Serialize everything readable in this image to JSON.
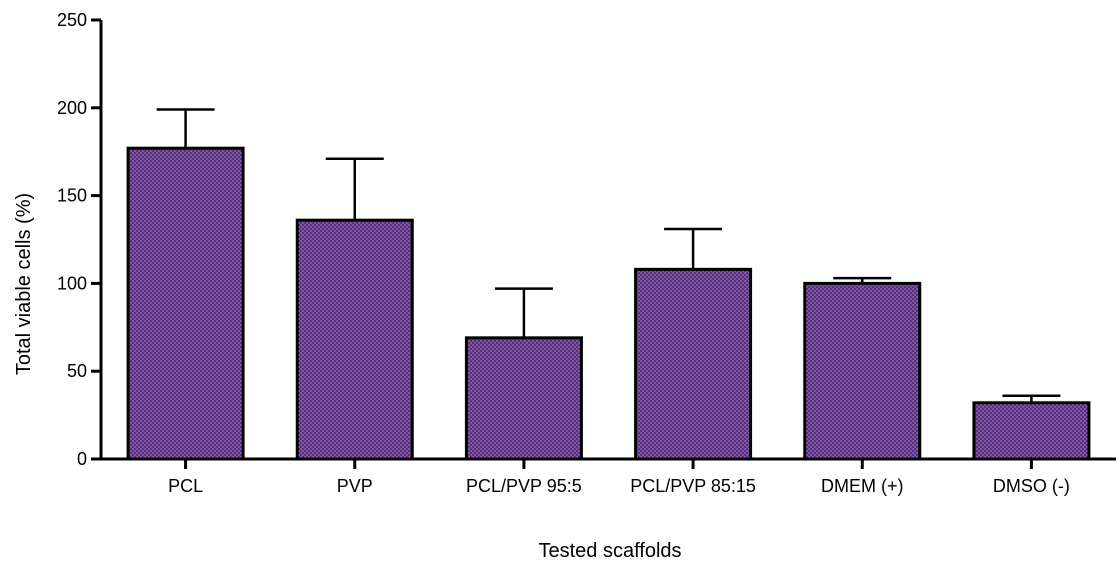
{
  "chart_data": {
    "type": "bar",
    "title": "",
    "xlabel": "Tested scaffolds",
    "ylabel": "Total viable cells (%)",
    "ylim": [
      0,
      250
    ],
    "yticks": [
      0,
      50,
      100,
      150,
      200,
      250
    ],
    "categories": [
      "PCL",
      "PVP",
      "PCL/PVP 95:5",
      "PCL/PVP 85:15",
      "DMEM (+)",
      "DMSO (-)"
    ],
    "values": [
      177,
      136,
      69,
      108,
      100,
      32
    ],
    "error_upper": [
      199,
      171,
      97,
      131,
      103,
      36
    ],
    "bar_color": "#5a2d82",
    "bar_pattern": "dotted",
    "grid": false,
    "legend": "none"
  }
}
